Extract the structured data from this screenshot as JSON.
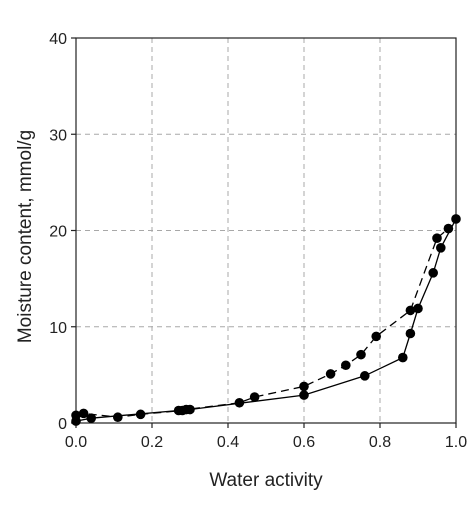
{
  "chart_data": {
    "type": "line",
    "title": "",
    "xlabel": "Water activity",
    "ylabel": "Moisture content, mmol/g",
    "xlim": [
      0,
      1.0
    ],
    "ylim": [
      0,
      40
    ],
    "x_ticks": [
      "0.0",
      "0.2",
      "0.4",
      "0.6",
      "0.8",
      "1.0"
    ],
    "y_ticks": [
      "0",
      "10",
      "20",
      "30",
      "40"
    ],
    "grid": true,
    "legend": "none",
    "series": [
      {
        "line_style": "solid",
        "color": "#000000",
        "marker": "filled-circle",
        "x": [
          0.0,
          0.04,
          0.27,
          0.3,
          0.6,
          0.76,
          0.86,
          0.88,
          0.9,
          0.94,
          0.96,
          1.0
        ],
        "y": [
          0.2,
          0.5,
          1.3,
          1.4,
          2.9,
          4.9,
          6.8,
          9.3,
          11.9,
          15.6,
          18.2,
          21.2
        ]
      },
      {
        "line_style": "dashed",
        "color": "#000000",
        "marker": "filled-circle",
        "x": [
          0.0,
          0.02,
          0.11,
          0.17,
          0.28,
          0.29,
          0.43,
          0.47,
          0.6,
          0.67,
          0.71,
          0.75,
          0.79,
          0.88,
          0.95,
          0.98
        ],
        "y": [
          0.8,
          1.0,
          0.6,
          0.9,
          1.3,
          1.4,
          2.1,
          2.7,
          3.8,
          5.1,
          6.0,
          7.1,
          9.0,
          11.7,
          19.2,
          20.2
        ]
      }
    ]
  }
}
